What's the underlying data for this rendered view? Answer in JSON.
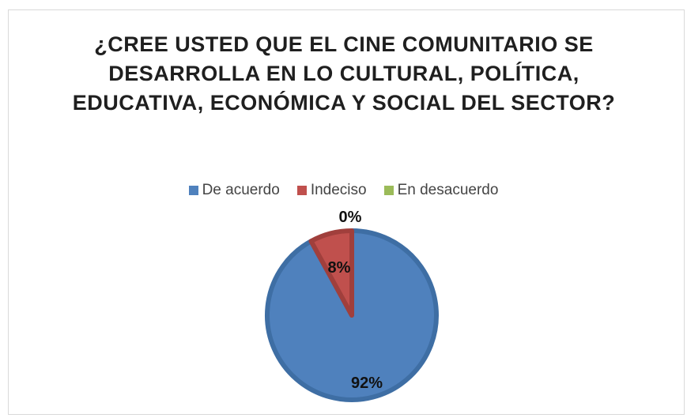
{
  "chart_data": {
    "type": "pie",
    "title": "¿CREE USTED QUE EL CINE COMUNITARIO SE DESARROLLA EN LO CULTURAL, POLÍTICA, EDUCATIVA, ECONÓMICA Y SOCIAL DEL SECTOR?",
    "categories": [
      "De acuerdo",
      "Indeciso",
      "En desacuerdo"
    ],
    "values": [
      92,
      8,
      0
    ],
    "labels": [
      "92%",
      "8%",
      "0%"
    ],
    "colors": [
      "#4f81bd",
      "#c0504d",
      "#9bbb59"
    ],
    "legend_position": "top"
  }
}
